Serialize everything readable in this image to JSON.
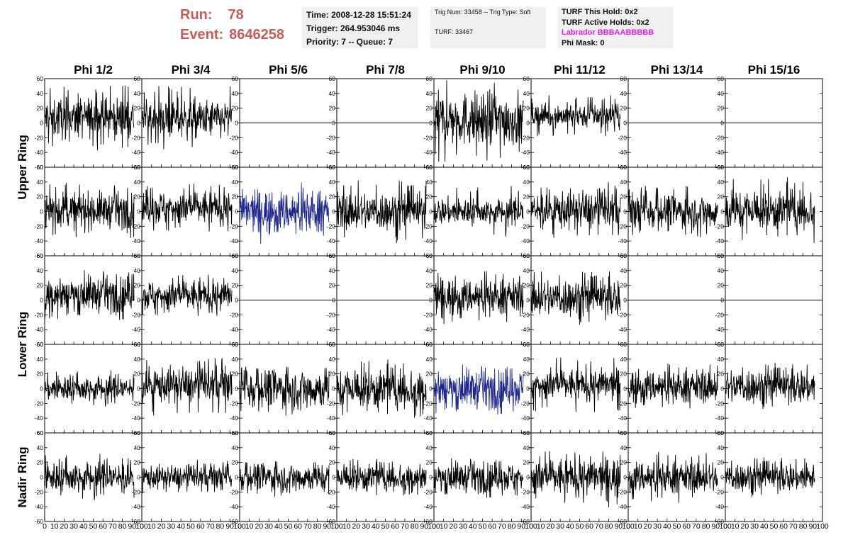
{
  "header": {
    "run_label": "Run:",
    "run_value": "78",
    "event_label": "Event:",
    "event_value": "8646258",
    "time_text": "Time: 2008-12-28 15:51:24",
    "trigger_text": "Trigger: 264.953046 ms",
    "priority_text": "Priority: 7 -- Queue: 7",
    "trig_num_text": "Trig Num: 33458 -- Trig Type: Soft",
    "turf_text": "TURF: 33467",
    "turf_this_hold": "TURF This Hold: 0x2",
    "turf_active_holds": "TURF Active Holds: 0x2",
    "labrador_text": "Labrador BBBAABBBBB",
    "phi_mask_text": "Phi Mask: 0"
  },
  "colors": {
    "run_text": "#c75c5c",
    "labrador_text": "#e61ee6",
    "trace_default": "#000000",
    "trace_highlight": "#1f2a8c",
    "panel_bg": "#f0f0f0"
  },
  "chart_data": {
    "type": "line",
    "column_labels": [
      "Phi 1/2",
      "Phi 3/4",
      "Phi 5/6",
      "Phi 7/8",
      "Phi 9/10",
      "Phi 11/12",
      "Phi 13/14",
      "Phi 15/16"
    ],
    "ring_labels": [
      "Upper Ring",
      "Lower Ring",
      "Nadir Ring"
    ],
    "ylim": [
      -60,
      60
    ],
    "xlim": [
      0,
      100
    ],
    "y_ticks": [
      -60,
      -40,
      -20,
      0,
      20,
      40,
      60
    ],
    "x_ticks": [
      0,
      10,
      20,
      30,
      40,
      50,
      60,
      70,
      80,
      90,
      100
    ],
    "x_tick_labels": [
      "0",
      "10",
      "20",
      "30",
      "40",
      "50",
      "60",
      "70",
      "80",
      "90",
      "100"
    ],
    "samples_per_trace": 260,
    "sample_x_end": 92,
    "rows": [
      {
        "ring": "Upper Ring",
        "channels": [
          {
            "amp": 14,
            "spike": 44,
            "offset": 7,
            "flat": false,
            "highlight": false
          },
          {
            "amp": 13,
            "spike": 45,
            "offset": 5,
            "flat": false,
            "highlight": false
          },
          {
            "amp": 0,
            "spike": 0,
            "offset": 0,
            "flat": true,
            "highlight": false
          },
          {
            "amp": 0,
            "spike": 0,
            "offset": 0,
            "flat": true,
            "highlight": false
          },
          {
            "amp": 18,
            "spike": 58,
            "offset": 5,
            "flat": false,
            "highlight": false
          },
          {
            "amp": 8,
            "spike": 28,
            "offset": 10,
            "flat": false,
            "highlight": false
          },
          {
            "amp": 0,
            "spike": 0,
            "offset": 0,
            "flat": true,
            "highlight": false
          },
          {
            "amp": 0,
            "spike": 0,
            "offset": 0,
            "flat": true,
            "highlight": false
          }
        ]
      },
      {
        "ring": "Upper Ring",
        "channels": [
          {
            "amp": 12,
            "spike": 38,
            "offset": 2,
            "flat": false,
            "highlight": false
          },
          {
            "amp": 12,
            "spike": 35,
            "offset": 5,
            "flat": false,
            "highlight": false
          },
          {
            "amp": 14,
            "spike": 33,
            "offset": 0,
            "flat": false,
            "highlight": true
          },
          {
            "amp": 13,
            "spike": 45,
            "offset": 0,
            "flat": false,
            "highlight": false
          },
          {
            "amp": 9,
            "spike": 35,
            "offset": 0,
            "flat": false,
            "highlight": false
          },
          {
            "amp": 13,
            "spike": 38,
            "offset": 2,
            "flat": false,
            "highlight": false
          },
          {
            "amp": 12,
            "spike": 35,
            "offset": 0,
            "flat": false,
            "highlight": false
          },
          {
            "amp": 14,
            "spike": 45,
            "offset": 2,
            "flat": false,
            "highlight": false
          }
        ]
      },
      {
        "ring": "Lower Ring",
        "channels": [
          {
            "amp": 12,
            "spike": 35,
            "offset": 8,
            "flat": false,
            "highlight": false
          },
          {
            "amp": 11,
            "spike": 30,
            "offset": 6,
            "flat": false,
            "highlight": false
          },
          {
            "amp": 0,
            "spike": 0,
            "offset": 0,
            "flat": true,
            "highlight": false
          },
          {
            "amp": 0,
            "spike": 0,
            "offset": 0,
            "flat": true,
            "highlight": false
          },
          {
            "amp": 12,
            "spike": 35,
            "offset": 5,
            "flat": false,
            "highlight": false
          },
          {
            "amp": 13,
            "spike": 38,
            "offset": 3,
            "flat": false,
            "highlight": false
          },
          {
            "amp": 0,
            "spike": 0,
            "offset": 0,
            "flat": true,
            "highlight": false
          },
          {
            "amp": 0,
            "spike": 0,
            "offset": 0,
            "flat": true,
            "highlight": false
          }
        ]
      },
      {
        "ring": "Lower Ring",
        "channels": [
          {
            "amp": 9,
            "spike": 25,
            "offset": 0,
            "flat": false,
            "highlight": false
          },
          {
            "amp": 12,
            "spike": 42,
            "offset": 5,
            "flat": false,
            "highlight": false
          },
          {
            "amp": 14,
            "spike": 30,
            "offset": 0,
            "flat": false,
            "highlight": false
          },
          {
            "amp": 14,
            "spike": 40,
            "offset": 0,
            "flat": false,
            "highlight": false
          },
          {
            "amp": 13,
            "spike": 35,
            "offset": 0,
            "flat": false,
            "highlight": true
          },
          {
            "amp": 11,
            "spike": 40,
            "offset": 5,
            "flat": false,
            "highlight": false
          },
          {
            "amp": 11,
            "spike": 30,
            "offset": 3,
            "flat": false,
            "highlight": false
          },
          {
            "amp": 12,
            "spike": 32,
            "offset": 3,
            "flat": false,
            "highlight": false
          }
        ]
      },
      {
        "ring": "Nadir Ring",
        "channels": [
          {
            "amp": 11,
            "spike": 32,
            "offset": 0,
            "flat": false,
            "highlight": false
          },
          {
            "amp": 8,
            "spike": 22,
            "offset": 0,
            "flat": false,
            "highlight": false
          },
          {
            "amp": 10,
            "spike": 22,
            "offset": 0,
            "flat": false,
            "highlight": false
          },
          {
            "amp": 10,
            "spike": 25,
            "offset": 0,
            "flat": false,
            "highlight": false
          },
          {
            "amp": 10,
            "spike": 28,
            "offset": 0,
            "flat": false,
            "highlight": false
          },
          {
            "amp": 13,
            "spike": 38,
            "offset": 0,
            "flat": false,
            "highlight": false
          },
          {
            "amp": 11,
            "spike": 35,
            "offset": 0,
            "flat": false,
            "highlight": false
          },
          {
            "amp": 10,
            "spike": 28,
            "offset": 0,
            "flat": false,
            "highlight": false
          }
        ]
      }
    ]
  }
}
